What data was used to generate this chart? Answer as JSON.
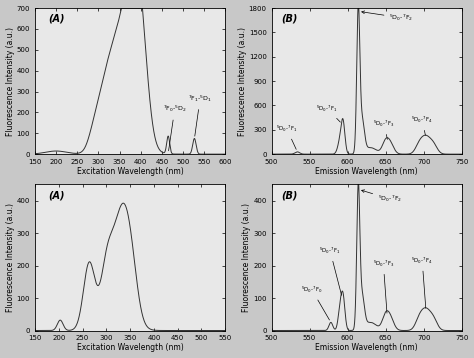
{
  "top_left": {
    "label": "(A)",
    "xlabel": "Excitation Wavelength (nm)",
    "ylabel": "Fluorescence Intensity (a.u.)",
    "xlim": [
      150,
      600
    ],
    "ylim": [
      0,
      700
    ],
    "xticks": [
      150,
      200,
      250,
      300,
      350,
      400,
      450,
      500,
      550,
      600
    ],
    "yticks": [
      0,
      100,
      200,
      300,
      400,
      500,
      600,
      700
    ]
  },
  "top_right": {
    "label": "(B)",
    "xlabel": "Emission Wavelength (nm)",
    "ylabel": "Fluorescence Intensity (a.u.)",
    "xlim": [
      500,
      750
    ],
    "ylim": [
      0,
      1800
    ],
    "xticks": [
      500,
      550,
      600,
      650,
      700,
      750
    ],
    "yticks": [
      0,
      300,
      600,
      900,
      1200,
      1500,
      1800
    ]
  },
  "bottom_left": {
    "label": "(A)",
    "xlabel": "Excitation Wavelength (nm)",
    "ylabel": "Fluorescence Intensity (a.u.)",
    "xlim": [
      150,
      550
    ],
    "ylim": [
      0,
      450
    ],
    "xticks": [
      150,
      200,
      250,
      300,
      350,
      400,
      450,
      500,
      550
    ],
    "yticks": [
      0,
      100,
      200,
      300,
      400
    ]
  },
  "bottom_right": {
    "label": "(B)",
    "xlabel": "Emission Wavelength (nm)",
    "ylabel": "Fluorescence Intensity (a.u.)",
    "xlim": [
      500,
      750
    ],
    "ylim": [
      0,
      450
    ],
    "xticks": [
      500,
      550,
      600,
      650,
      700,
      750
    ],
    "yticks": [
      0,
      100,
      200,
      300,
      400
    ]
  },
  "line_color": "#333333",
  "bg_color": "#e8e8e8",
  "fig_bg": "#c8c8c8"
}
